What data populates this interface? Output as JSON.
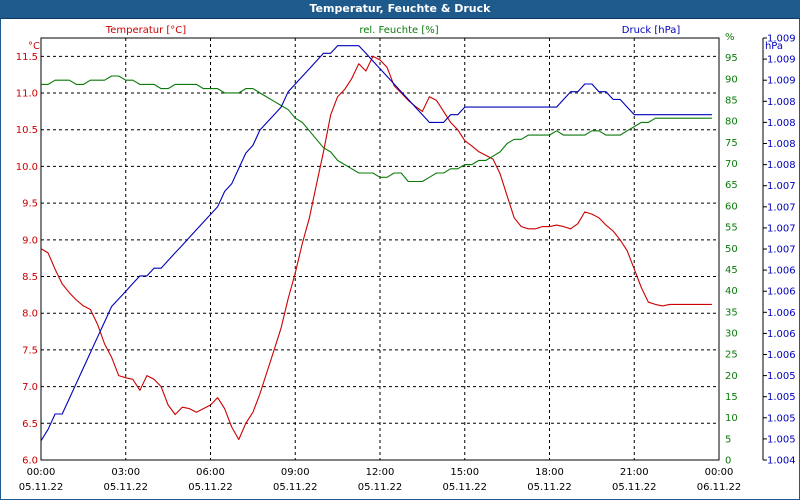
{
  "window": {
    "title": "Temperatur, Feuchte & Druck"
  },
  "colors": {
    "temperature": "#cc0000",
    "humidity": "#0a7a0a",
    "pressure": "#0000bb",
    "grid": "#000000",
    "titlebar": "#1f5a8c"
  },
  "chart_data": {
    "type": "line",
    "title": "Temperatur, Feuchte & Druck",
    "x": [
      0,
      0.25,
      0.5,
      0.75,
      1,
      1.25,
      1.5,
      1.75,
      2,
      2.25,
      2.5,
      2.75,
      3,
      3.25,
      3.5,
      3.75,
      4,
      4.25,
      4.5,
      4.75,
      5,
      5.25,
      5.5,
      5.75,
      6,
      6.25,
      6.5,
      6.75,
      7,
      7.25,
      7.5,
      7.75,
      8,
      8.25,
      8.5,
      8.75,
      9,
      9.25,
      9.5,
      9.75,
      10,
      10.25,
      10.5,
      10.75,
      11,
      11.25,
      11.5,
      11.75,
      12,
      12.25,
      12.5,
      12.75,
      13,
      13.25,
      13.5,
      13.75,
      14,
      14.25,
      14.5,
      14.75,
      15,
      15.25,
      15.5,
      15.75,
      16,
      16.25,
      16.5,
      16.75,
      17,
      17.25,
      17.5,
      17.75,
      18,
      18.25,
      18.5,
      18.75,
      19,
      19.25,
      19.5,
      19.75,
      20,
      20.25,
      20.5,
      20.75,
      21,
      21.25,
      21.5,
      21.75,
      22,
      22.25,
      22.5,
      22.75,
      23,
      23.25,
      23.5,
      23.75
    ],
    "xlim": [
      0,
      24
    ],
    "xticks": [
      {
        "value": 0,
        "time": "00:00",
        "date": "05.11.22"
      },
      {
        "value": 3,
        "time": "03:00",
        "date": "05.11.22"
      },
      {
        "value": 6,
        "time": "06:00",
        "date": "05.11.22"
      },
      {
        "value": 9,
        "time": "09:00",
        "date": "05.11.22"
      },
      {
        "value": 12,
        "time": "12:00",
        "date": "05.11.22"
      },
      {
        "value": 15,
        "time": "15:00",
        "date": "05.11.22"
      },
      {
        "value": 18,
        "time": "18:00",
        "date": "05.11.22"
      },
      {
        "value": 21,
        "time": "21:00",
        "date": "05.11.22"
      },
      {
        "value": 24,
        "time": "00:00",
        "date": "06.11.22"
      }
    ],
    "axes": {
      "left": {
        "label": "Temperatur [°C]",
        "unit": "°C",
        "ylim": [
          6.0,
          11.75
        ],
        "ticks": [
          "6.0",
          "6.5",
          "7.0",
          "7.5",
          "8.0",
          "8.5",
          "9.0",
          "9.5",
          "10.0",
          "10.5",
          "11.0",
          "11.5"
        ]
      },
      "middle": {
        "label": "rel. Feuchte [%]",
        "unit": "%",
        "ylim": [
          0,
          100
        ],
        "ticks": [
          "0",
          "5",
          "10",
          "15",
          "20",
          "25",
          "30",
          "35",
          "40",
          "45",
          "50",
          "55",
          "60",
          "65",
          "70",
          "75",
          "80",
          "85",
          "90",
          "95",
          "%"
        ]
      },
      "right": {
        "label": "Druck [hPa]",
        "unit": "hPa",
        "ylim": [
          1.004,
          1.0095
        ],
        "ticks": [
          "1.004",
          "1.005",
          "1.005",
          "1.005",
          "1.005",
          "1.006",
          "1.006",
          "1.006",
          "1.006",
          "1.006",
          "1.007",
          "1.007",
          "1.007",
          "1.007",
          "1.008",
          "1.008",
          "1.008",
          "1.008",
          "1.009",
          "1.009",
          "1.009"
        ]
      }
    },
    "series": [
      {
        "name": "Temperatur [°C]",
        "axis": "left",
        "values": [
          8.88,
          8.82,
          8.6,
          8.4,
          8.28,
          8.18,
          8.1,
          8.05,
          7.85,
          7.58,
          7.4,
          7.15,
          7.12,
          7.1,
          6.95,
          7.15,
          7.1,
          7.0,
          6.75,
          6.62,
          6.72,
          6.7,
          6.65,
          6.7,
          6.75,
          6.85,
          6.7,
          6.45,
          6.28,
          6.5,
          6.65,
          6.9,
          7.2,
          7.5,
          7.8,
          8.2,
          8.55,
          8.95,
          9.3,
          9.75,
          10.2,
          10.7,
          10.95,
          11.05,
          11.2,
          11.4,
          11.3,
          11.5,
          11.45,
          11.35,
          11.1,
          11.0,
          10.9,
          10.82,
          10.75,
          10.95,
          10.9,
          10.75,
          10.6,
          10.5,
          10.35,
          10.28,
          10.2,
          10.15,
          10.1,
          9.9,
          9.6,
          9.3,
          9.18,
          9.15,
          9.15,
          9.18,
          9.18,
          9.2,
          9.18,
          9.15,
          9.22,
          9.38,
          9.35,
          9.3,
          9.2,
          9.12,
          9.0,
          8.85,
          8.6,
          8.35,
          8.15,
          8.12,
          8.1,
          8.12,
          8.12,
          8.12,
          8.12,
          8.12,
          8.12,
          8.12
        ]
      },
      {
        "name": "rel. Feuchte [%]",
        "axis": "middle",
        "values": [
          89,
          89,
          90,
          90,
          90,
          89,
          89,
          90,
          90,
          90,
          91,
          91,
          90,
          90,
          89,
          89,
          89,
          88,
          88,
          89,
          89,
          89,
          89,
          88,
          88,
          88,
          87,
          87,
          87,
          88,
          88,
          87,
          86,
          85,
          84,
          83,
          81,
          80,
          78,
          76,
          74,
          73,
          71,
          70,
          69,
          68,
          68,
          68,
          67,
          67,
          68,
          68,
          66,
          66,
          66,
          67,
          68,
          68,
          69,
          69,
          70,
          70,
          71,
          71,
          72,
          73,
          75,
          76,
          76,
          77,
          77,
          77,
          77,
          78,
          77,
          77,
          77,
          77,
          78,
          78,
          77,
          77,
          77,
          78,
          79,
          80,
          80,
          81,
          81,
          81,
          81,
          81,
          81,
          81,
          81,
          81
        ]
      },
      {
        "name": "Druck [hPa]",
        "axis": "right",
        "values": [
          1.00425,
          1.0044,
          1.0046,
          1.0046,
          1.0048,
          1.005,
          1.0052,
          1.0054,
          1.0056,
          1.0058,
          1.006,
          1.0061,
          1.0062,
          1.0063,
          1.0064,
          1.0064,
          1.0065,
          1.0065,
          1.0066,
          1.0067,
          1.0068,
          1.0069,
          1.007,
          1.0071,
          1.0072,
          1.0073,
          1.0075,
          1.0076,
          1.0078,
          1.008,
          1.0081,
          1.0083,
          1.0084,
          1.0085,
          1.0086,
          1.0088,
          1.0089,
          1.009,
          1.0091,
          1.0092,
          1.0093,
          1.0093,
          1.0094,
          1.0094,
          1.0094,
          1.0094,
          1.0093,
          1.0092,
          1.0091,
          1.009,
          1.0089,
          1.0088,
          1.0087,
          1.0086,
          1.0085,
          1.0084,
          1.0084,
          1.0084,
          1.0085,
          1.0085,
          1.0086,
          1.0086,
          1.0086,
          1.0086,
          1.0086,
          1.0086,
          1.0086,
          1.0086,
          1.0086,
          1.0086,
          1.0086,
          1.0086,
          1.0086,
          1.0086,
          1.0087,
          1.0088,
          1.0088,
          1.0089,
          1.0089,
          1.0088,
          1.0088,
          1.0087,
          1.0087,
          1.0086,
          1.0085,
          1.0085,
          1.0085,
          1.0085,
          1.0085,
          1.0085,
          1.0085,
          1.0085,
          1.0085,
          1.0085,
          1.0085,
          1.0085
        ]
      }
    ],
    "grid": true
  }
}
